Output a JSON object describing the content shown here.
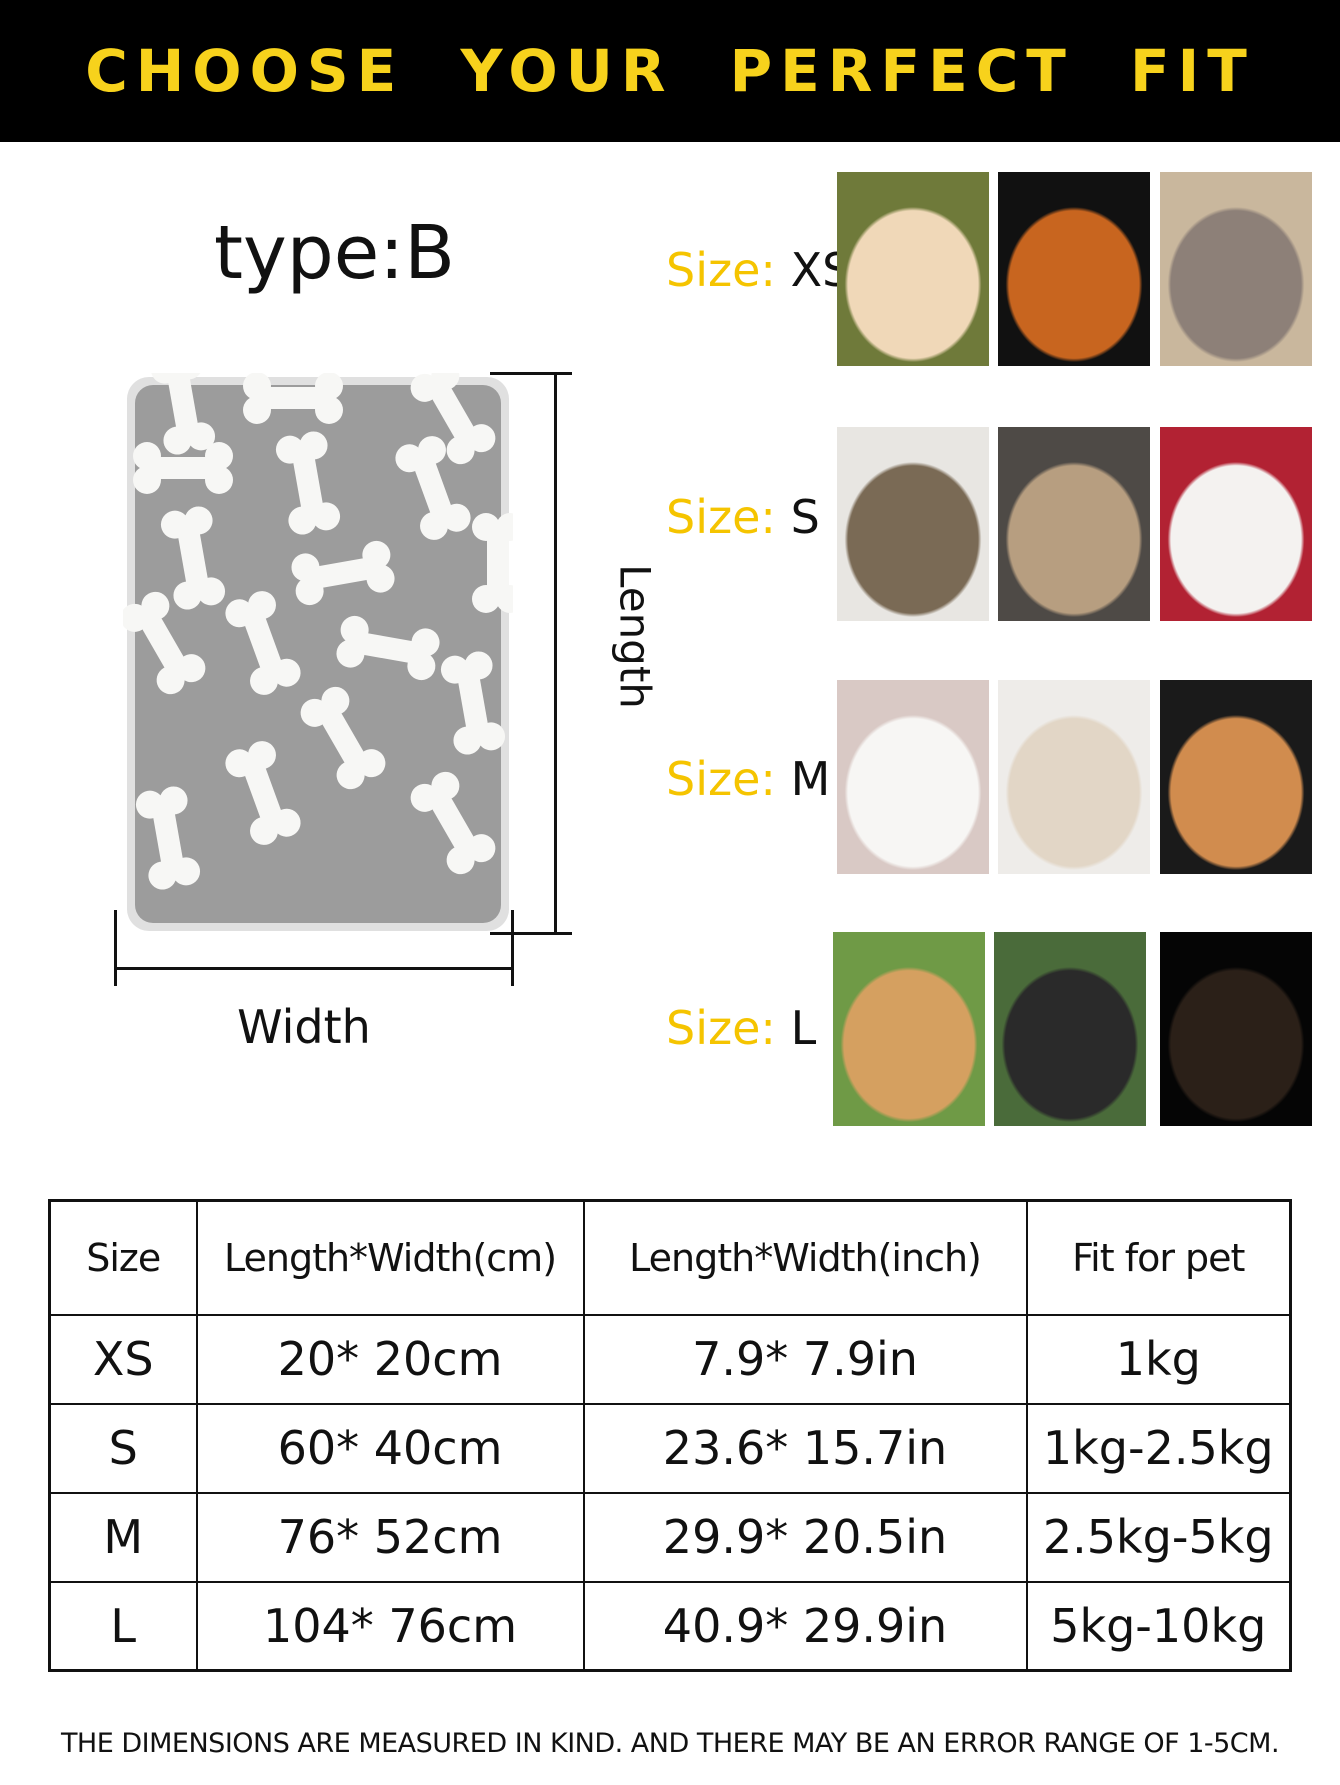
{
  "header": {
    "title": "CHOOSE YOUR PERFECT FIT"
  },
  "product": {
    "type_label": "type:B",
    "length_label": "Length",
    "width_label": "Width",
    "blanket_color": "#9a9a9a"
  },
  "sizes": [
    {
      "prefix": "Size:",
      "size": "XS"
    },
    {
      "prefix": "Size:",
      "size": "S"
    },
    {
      "prefix": "Size:",
      "size": "M"
    },
    {
      "prefix": "Size:",
      "size": "L"
    }
  ],
  "colors": {
    "accent": "#f7d21c",
    "size_prefix": "#f5c400",
    "header_bg": "#000000"
  },
  "table": {
    "headers": [
      "Size",
      "Length*Width(cm)",
      "Length*Width(inch)",
      "Fit for pet"
    ],
    "rows": [
      [
        "XS",
        "20* 20cm",
        "7.9* 7.9in",
        "1kg"
      ],
      [
        "S",
        "60* 40cm",
        "23.6* 15.7in",
        "1kg-2.5kg"
      ],
      [
        "M",
        "76* 52cm",
        "29.9* 20.5in",
        "2.5kg-5kg"
      ],
      [
        "L",
        "104* 76cm",
        "40.9* 29.9in",
        "5kg-10kg"
      ]
    ]
  },
  "footer": {
    "note": "THE DIMENSIONS ARE MEASURED IN KIND. AND THERE MAY BE AN ERROR RANGE OF 1-5CM."
  }
}
